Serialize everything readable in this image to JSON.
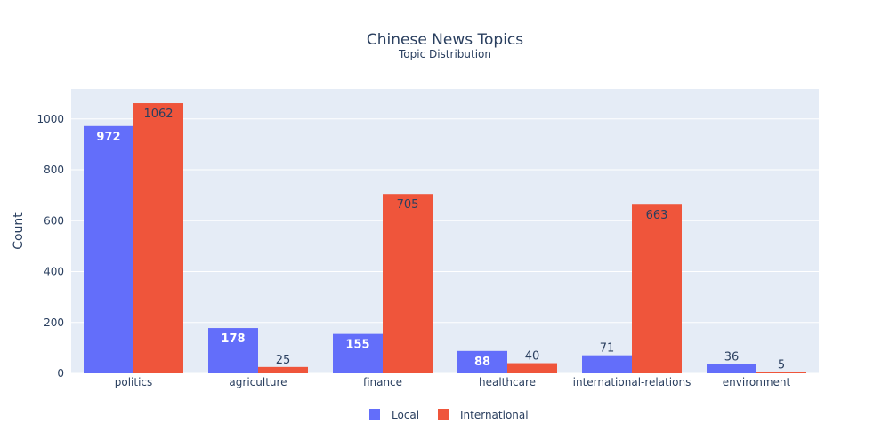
{
  "chart_data": {
    "type": "bar",
    "title": "Chinese News Topics",
    "subtitle": "Topic Distribution",
    "xlabel": "",
    "ylabel": "Count",
    "categories": [
      "politics",
      "agriculture",
      "finance",
      "healthcare",
      "international-relations",
      "environment"
    ],
    "series": [
      {
        "name": "Local",
        "color": "#636efa",
        "values": [
          972,
          178,
          155,
          88,
          71,
          36
        ]
      },
      {
        "name": "International",
        "color": "#ef553b",
        "values": [
          1062,
          25,
          705,
          40,
          663,
          5
        ]
      }
    ],
    "ylim": [
      0,
      1118
    ],
    "yticks": [
      0,
      200,
      400,
      600,
      800,
      1000
    ],
    "grid": true,
    "legend_position": "bottom-center",
    "plot_background": "#e5ecf6"
  }
}
